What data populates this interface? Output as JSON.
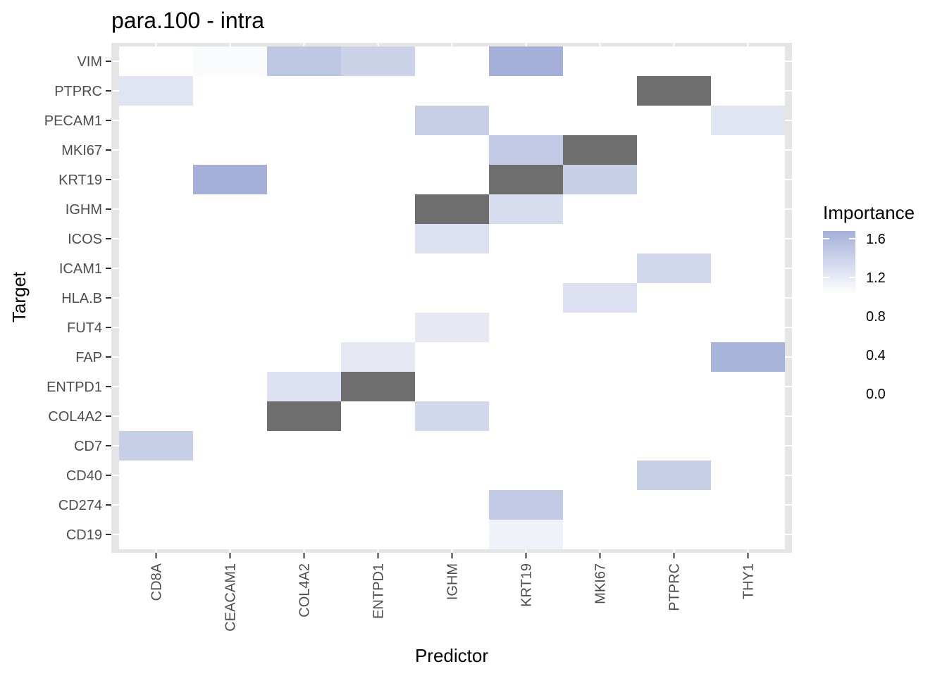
{
  "chart_data": {
    "type": "heatmap",
    "title": "para.100 - intra",
    "xlabel": "Predictor",
    "ylabel": "Target",
    "x_categories": [
      "CD8A",
      "CEACAM1",
      "COL4A2",
      "ENTPD1",
      "IGHM",
      "KRT19",
      "MKI67",
      "PTPRC",
      "THY1"
    ],
    "y_categories": [
      "VIM",
      "PTPRC",
      "PECAM1",
      "MKI67",
      "KRT19",
      "IGHM",
      "ICOS",
      "ICAM1",
      "HLA.B",
      "FUT4",
      "FAP",
      "ENTPD1",
      "COL4A2",
      "CD7",
      "CD40",
      "CD274",
      "CD19"
    ],
    "cells": [
      {
        "x": "CEACAM1",
        "y": "VIM",
        "value": 0.85
      },
      {
        "x": "COL4A2",
        "y": "VIM",
        "value": 1.45
      },
      {
        "x": "ENTPD1",
        "y": "VIM",
        "value": 1.3
      },
      {
        "x": "KRT19",
        "y": "VIM",
        "value": 1.7
      },
      {
        "x": "CD8A",
        "y": "PTPRC",
        "value": 1.1
      },
      {
        "x": "PTPRC",
        "y": "PTPRC",
        "value": null
      },
      {
        "x": "IGHM",
        "y": "PECAM1",
        "value": 1.35
      },
      {
        "x": "THY1",
        "y": "PECAM1",
        "value": 1.1
      },
      {
        "x": "KRT19",
        "y": "MKI67",
        "value": 1.4
      },
      {
        "x": "MKI67",
        "y": "MKI67",
        "value": null
      },
      {
        "x": "CEACAM1",
        "y": "KRT19",
        "value": 1.7
      },
      {
        "x": "KRT19",
        "y": "KRT19",
        "value": null
      },
      {
        "x": "MKI67",
        "y": "KRT19",
        "value": 1.35
      },
      {
        "x": "IGHM",
        "y": "IGHM",
        "value": null
      },
      {
        "x": "KRT19",
        "y": "IGHM",
        "value": 1.2
      },
      {
        "x": "IGHM",
        "y": "ICOS",
        "value": 1.15
      },
      {
        "x": "PTPRC",
        "y": "ICAM1",
        "value": 1.25
      },
      {
        "x": "MKI67",
        "y": "HLA.B",
        "value": 1.15
      },
      {
        "x": "IGHM",
        "y": "FUT4",
        "value": 1.05
      },
      {
        "x": "ENTPD1",
        "y": "FAP",
        "value": 1.05
      },
      {
        "x": "THY1",
        "y": "FAP",
        "value": 1.65
      },
      {
        "x": "COL4A2",
        "y": "ENTPD1",
        "value": 1.15
      },
      {
        "x": "ENTPD1",
        "y": "ENTPD1",
        "value": null
      },
      {
        "x": "COL4A2",
        "y": "COL4A2",
        "value": null
      },
      {
        "x": "IGHM",
        "y": "COL4A2",
        "value": 1.25
      },
      {
        "x": "CD8A",
        "y": "CD7",
        "value": 1.35
      },
      {
        "x": "PTPRC",
        "y": "CD40",
        "value": 1.35
      },
      {
        "x": "KRT19",
        "y": "CD274",
        "value": 1.4
      },
      {
        "x": "KRT19",
        "y": "CD19",
        "value": 0.95
      }
    ],
    "na_color": "#6e6e6e",
    "legend": {
      "title": "Importance",
      "breaks": [
        "1.6",
        "1.2",
        "0.8",
        "0.4",
        "0.0"
      ],
      "placement": "right",
      "low_value": 0.8,
      "high_value": 1.7,
      "low_color": "#ffffff",
      "high_color": "#a4b0d8"
    },
    "panel_background": "#e5e5e5",
    "grid": true
  }
}
